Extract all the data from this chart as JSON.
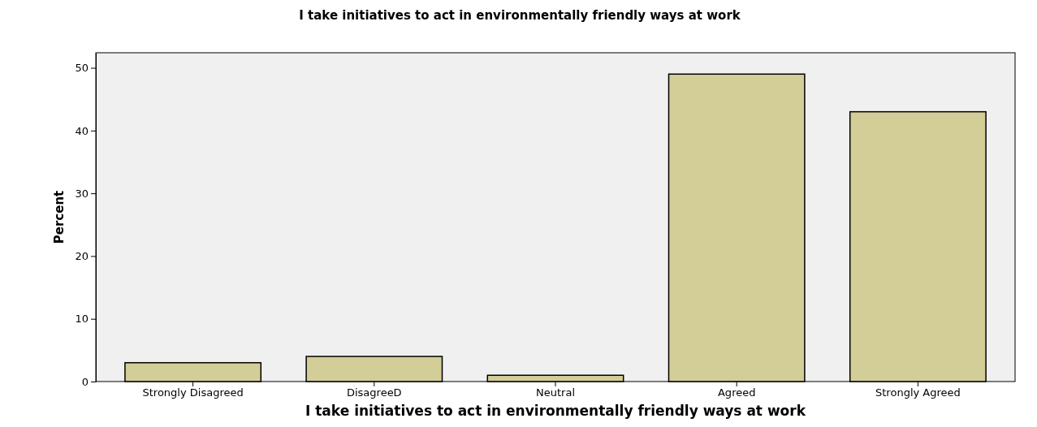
{
  "chart_data": {
    "type": "bar",
    "title": "I take initiatives to act in environmentally friendly ways at work",
    "xlabel": "I take initiatives to act in environmentally friendly ways at work",
    "ylabel": "Percent",
    "categories": [
      "Strongly Disagreed",
      "DisagreeD",
      "Neutral",
      "Agreed",
      "Strongly Agreed"
    ],
    "values": [
      3,
      4,
      1,
      49,
      43
    ],
    "color": "#d3ce97",
    "ylim": [
      0,
      52.4
    ],
    "yticks": [
      0,
      10,
      20,
      30,
      40,
      50
    ],
    "grid": false
  }
}
